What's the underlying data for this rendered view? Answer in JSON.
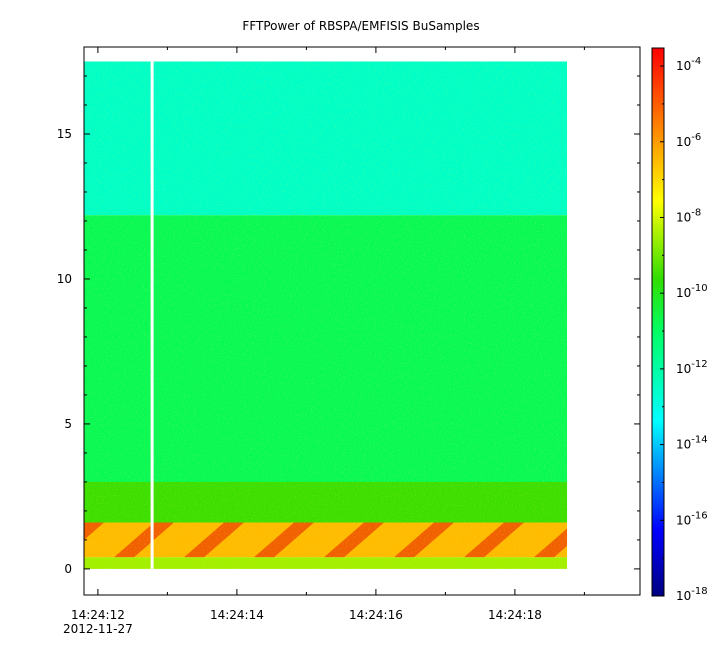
{
  "chart_data": {
    "type": "heatmap",
    "title": "FFTPower of RBSPA/EMFISIS  BuSamples",
    "xlabel": "",
    "ylabel": "",
    "x_tick_labels": [
      "14:24:12",
      "14:24:14",
      "14:24:16",
      "14:24:18"
    ],
    "x_tick_times_s": [
      12,
      14,
      16,
      18
    ],
    "x_date_label": "2012-11-27",
    "xlim_s": [
      11.8,
      19.8
    ],
    "data_time_range_s": [
      11.8,
      18.75
    ],
    "data_gap_time_s": 12.78,
    "y_ticks": [
      0,
      5,
      10,
      15
    ],
    "ylim": [
      -0.9,
      18.0
    ],
    "data_freq_range": [
      0,
      17.5
    ],
    "colorbar": {
      "scale": "log",
      "range": [
        1e-18,
        0.0003
      ],
      "tick_exponents": [
        -4,
        -6,
        -8,
        -10,
        -12,
        -14,
        -16,
        -18
      ],
      "tick_base": "10"
    },
    "bands": [
      {
        "freq_range": [
          12.2,
          17.5
        ],
        "log_power_approx": -12.5
      },
      {
        "freq_range": [
          1.7,
          12.2
        ],
        "log_power_approx": -10.8
      },
      {
        "freq_range": [
          1.6,
          3.0
        ],
        "log_power_approx": -9.5
      },
      {
        "freq_range": [
          0.4,
          1.6
        ],
        "log_power_approx": -6.5
      },
      {
        "freq_range": [
          0.0,
          0.4
        ],
        "log_power_approx": -8.5
      }
    ]
  }
}
